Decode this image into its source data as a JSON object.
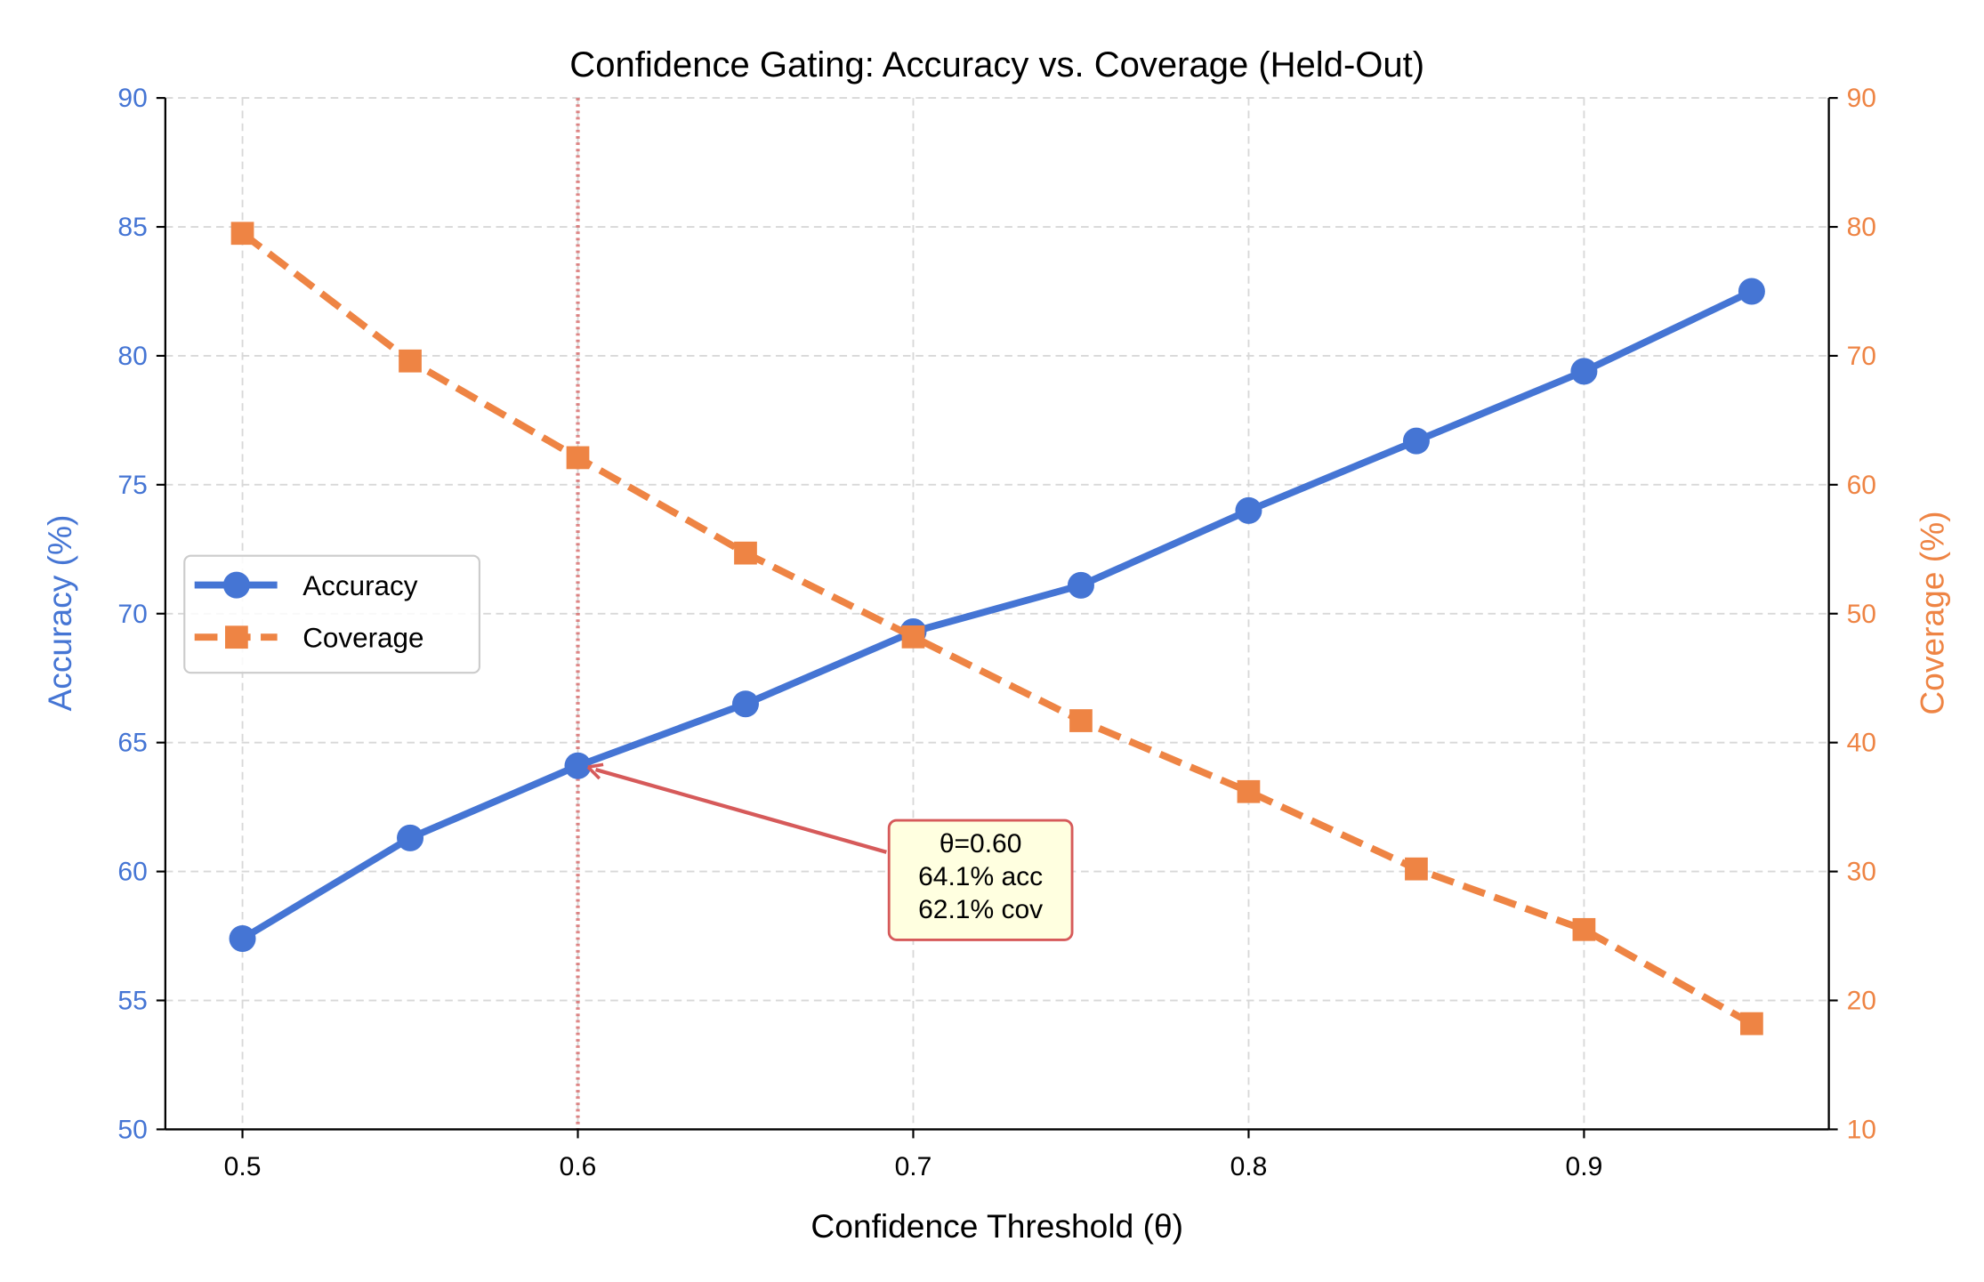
{
  "chart_data": {
    "type": "line",
    "title": "Confidence Gating: Accuracy vs. Coverage (Held-Out)",
    "xlabel": "Confidence Threshold (θ)",
    "ylabel": "Accuracy (%)",
    "y2label": "Coverage (%)",
    "xlim": [
      0.477,
      0.973
    ],
    "ylim": [
      50,
      90
    ],
    "y2lim": [
      10,
      90
    ],
    "xticks": [
      "0.5",
      "0.6",
      "0.7",
      "0.8",
      "0.9"
    ],
    "yticks": [
      "50",
      "55",
      "60",
      "65",
      "70",
      "75",
      "80",
      "85",
      "90"
    ],
    "y2ticks": [
      "10",
      "20",
      "30",
      "40",
      "50",
      "60",
      "70",
      "80",
      "90"
    ],
    "grid": true,
    "legend": "center-left",
    "x": [
      0.5,
      0.55,
      0.6,
      0.65,
      0.7,
      0.75,
      0.8,
      0.85,
      0.9,
      0.95
    ],
    "series": [
      {
        "name": "Accuracy",
        "axis": "left",
        "color": "#4575d4",
        "marker": "circle",
        "linestyle": "solid",
        "values": [
          57.4,
          61.3,
          64.1,
          66.5,
          69.3,
          71.1,
          74.0,
          76.7,
          79.4,
          82.5
        ]
      },
      {
        "name": "Coverage",
        "axis": "right",
        "color": "#ee8444",
        "marker": "square",
        "linestyle": "dashed",
        "values": [
          79.5,
          69.6,
          62.1,
          54.7,
          48.2,
          41.7,
          36.2,
          30.2,
          25.5,
          18.2
        ]
      }
    ],
    "vline": {
      "x": 0.6,
      "color": "#d65a5a",
      "linestyle": "dotted"
    },
    "annotation": {
      "lines": [
        "θ=0.60",
        "64.1% acc",
        "62.1% cov"
      ],
      "point": {
        "x": 0.6,
        "y": 64.1
      },
      "box_color": "#ffffe0",
      "edge_color": "#d65a5a"
    }
  }
}
